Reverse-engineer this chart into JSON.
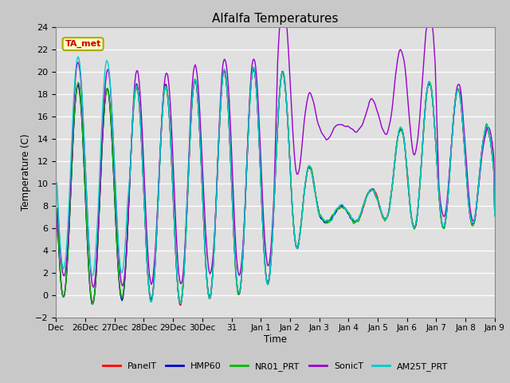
{
  "title": "Alfalfa Temperatures",
  "ylabel": "Temperature (C)",
  "xlabel": "Time",
  "ylim": [
    -2,
    24
  ],
  "yticks": [
    -2,
    0,
    2,
    4,
    6,
    8,
    10,
    12,
    14,
    16,
    18,
    20,
    22,
    24
  ],
  "annotation_text": "TA_met",
  "annotation_box_color": "#ffffc0",
  "annotation_text_color": "#cc0000",
  "annotation_border_color": "#aaaa00",
  "fig_bg_color": "#c8c8c8",
  "ax_bg_color": "#e0e0e0",
  "grid_color": "#ffffff",
  "series": {
    "PanelT": {
      "color": "#ff0000",
      "lw": 1.0
    },
    "HMP60": {
      "color": "#0000cc",
      "lw": 1.0
    },
    "NR01_PRT": {
      "color": "#00bb00",
      "lw": 1.0
    },
    "SonicT": {
      "color": "#9900cc",
      "lw": 1.0
    },
    "AM25T_PRT": {
      "color": "#00cccc",
      "lw": 1.0
    }
  },
  "xtick_labels": [
    "Dec",
    "26Dec",
    "27Dec",
    "28Dec",
    "29Dec",
    "30Dec",
    "31",
    "Jan 1",
    "Jan 2",
    "Jan 3",
    "Jan 4",
    "Jan 5",
    "Jan 6",
    "Jan 7",
    "Jan 8",
    "Jan 9"
  ],
  "n_points": 480
}
